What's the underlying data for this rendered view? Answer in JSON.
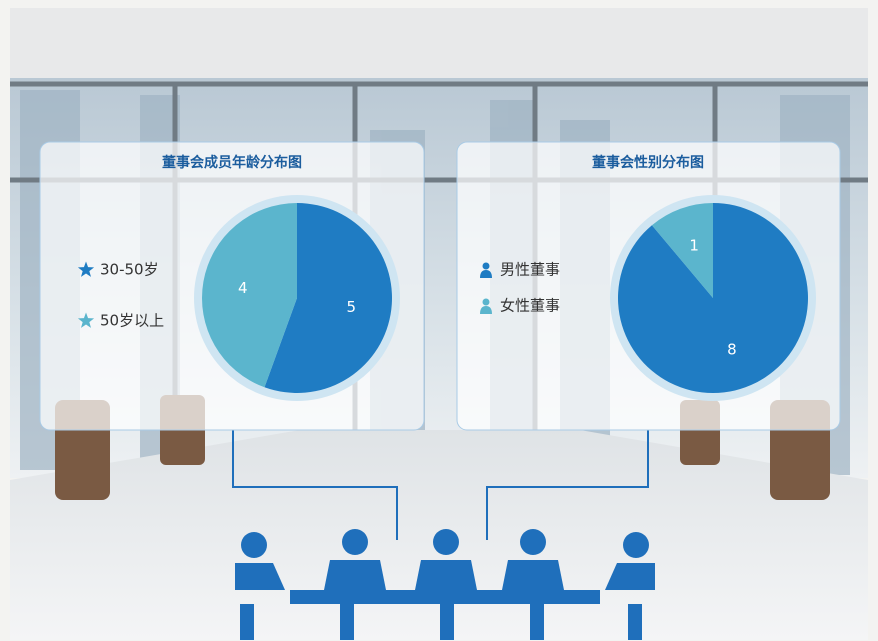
{
  "chart_data": [
    {
      "type": "pie",
      "title": "董事会成员年龄分布图",
      "categories": [
        "30-50岁",
        "50岁以上"
      ],
      "values": [
        5,
        4
      ],
      "colors": [
        "#1f7cc3",
        "#5bb5cd"
      ],
      "legend_marker": "star"
    },
    {
      "type": "pie",
      "title": "董事会性别分布图",
      "categories": [
        "男性董事",
        "女性董事"
      ],
      "values": [
        8,
        1
      ],
      "colors": [
        "#1f7cc3",
        "#5bb5cd"
      ],
      "legend_marker": "person"
    }
  ]
}
